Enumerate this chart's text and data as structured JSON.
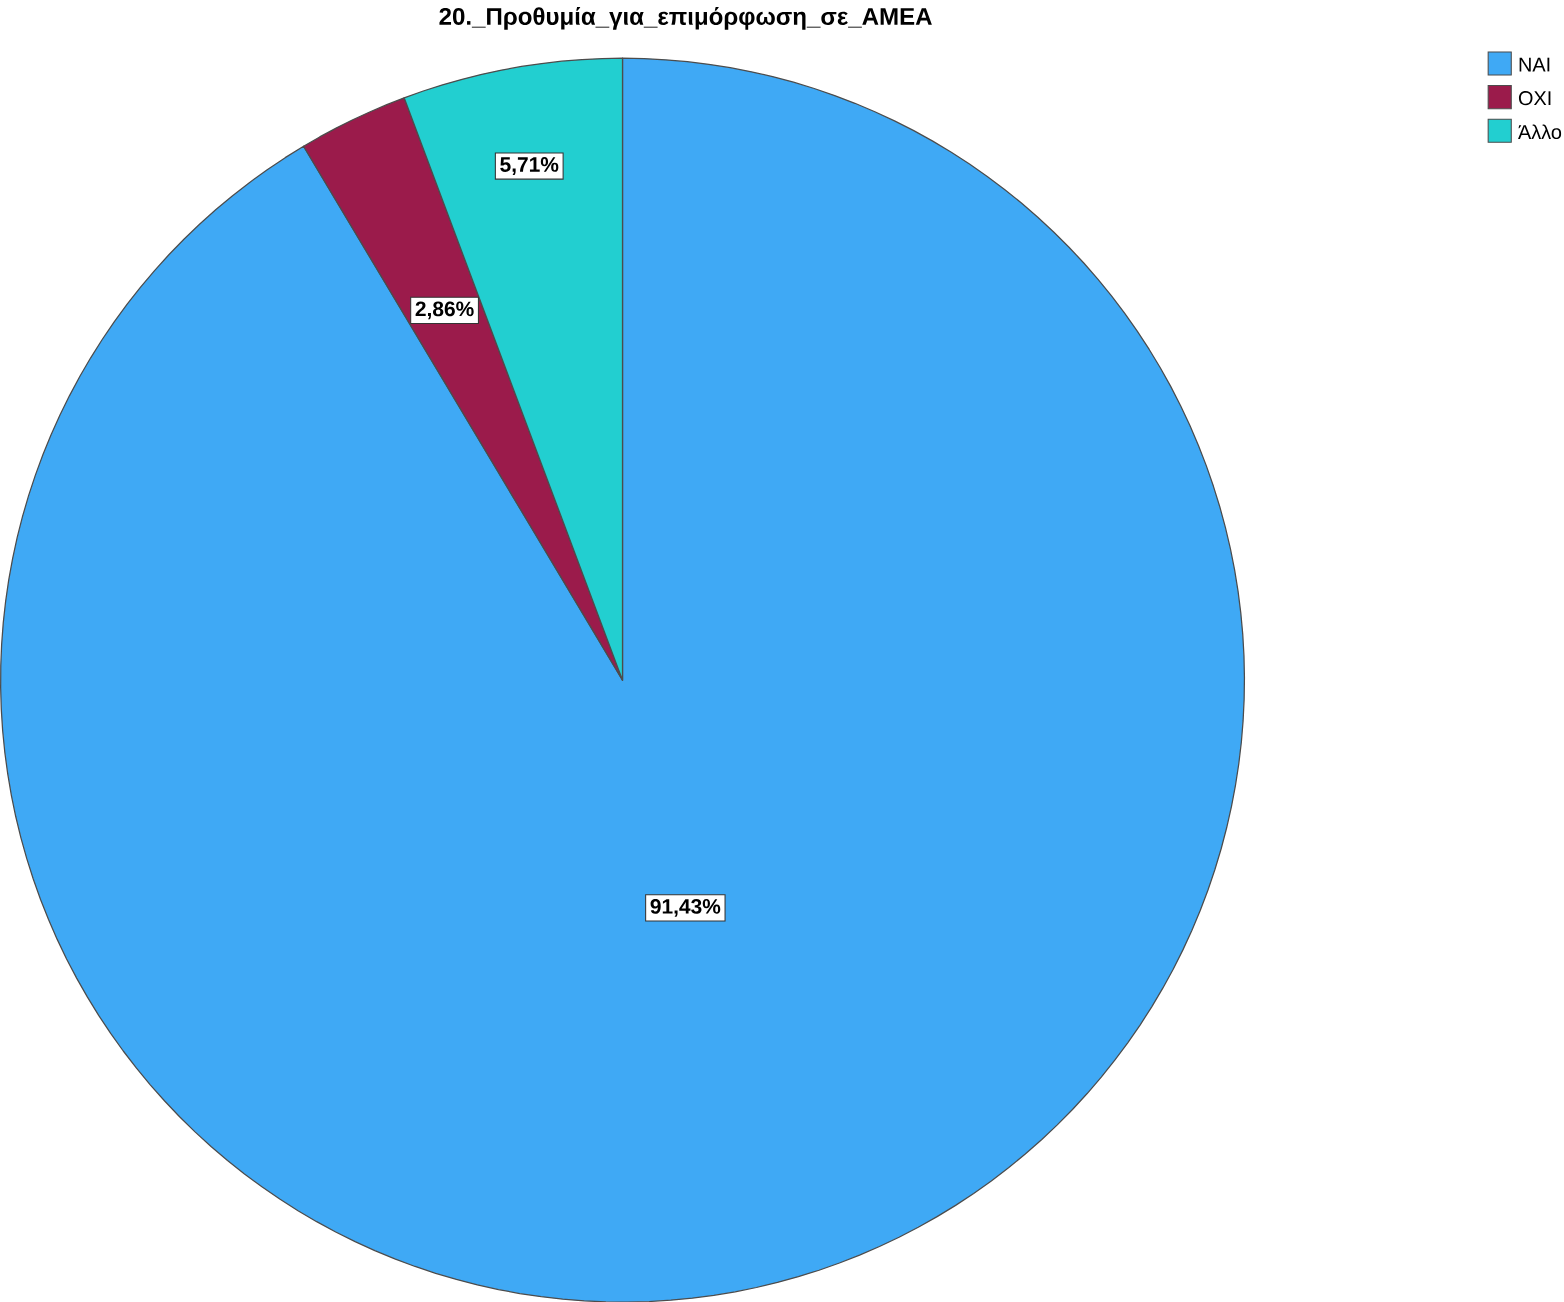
{
  "chart_data": {
    "type": "pie",
    "title": "20._Προθυμία_για_επιμόρφωση_σε_ΑΜΕΑ",
    "categories": [
      "NAI",
      "OXI",
      "Άλλο"
    ],
    "values": [
      91.43,
      2.86,
      5.71
    ],
    "colors": [
      "#3fa9f5",
      "#9b1b4b",
      "#22cfd0"
    ],
    "value_labels": [
      "91,43%",
      "2,86%",
      "5,71%"
    ],
    "legend": "top right"
  }
}
